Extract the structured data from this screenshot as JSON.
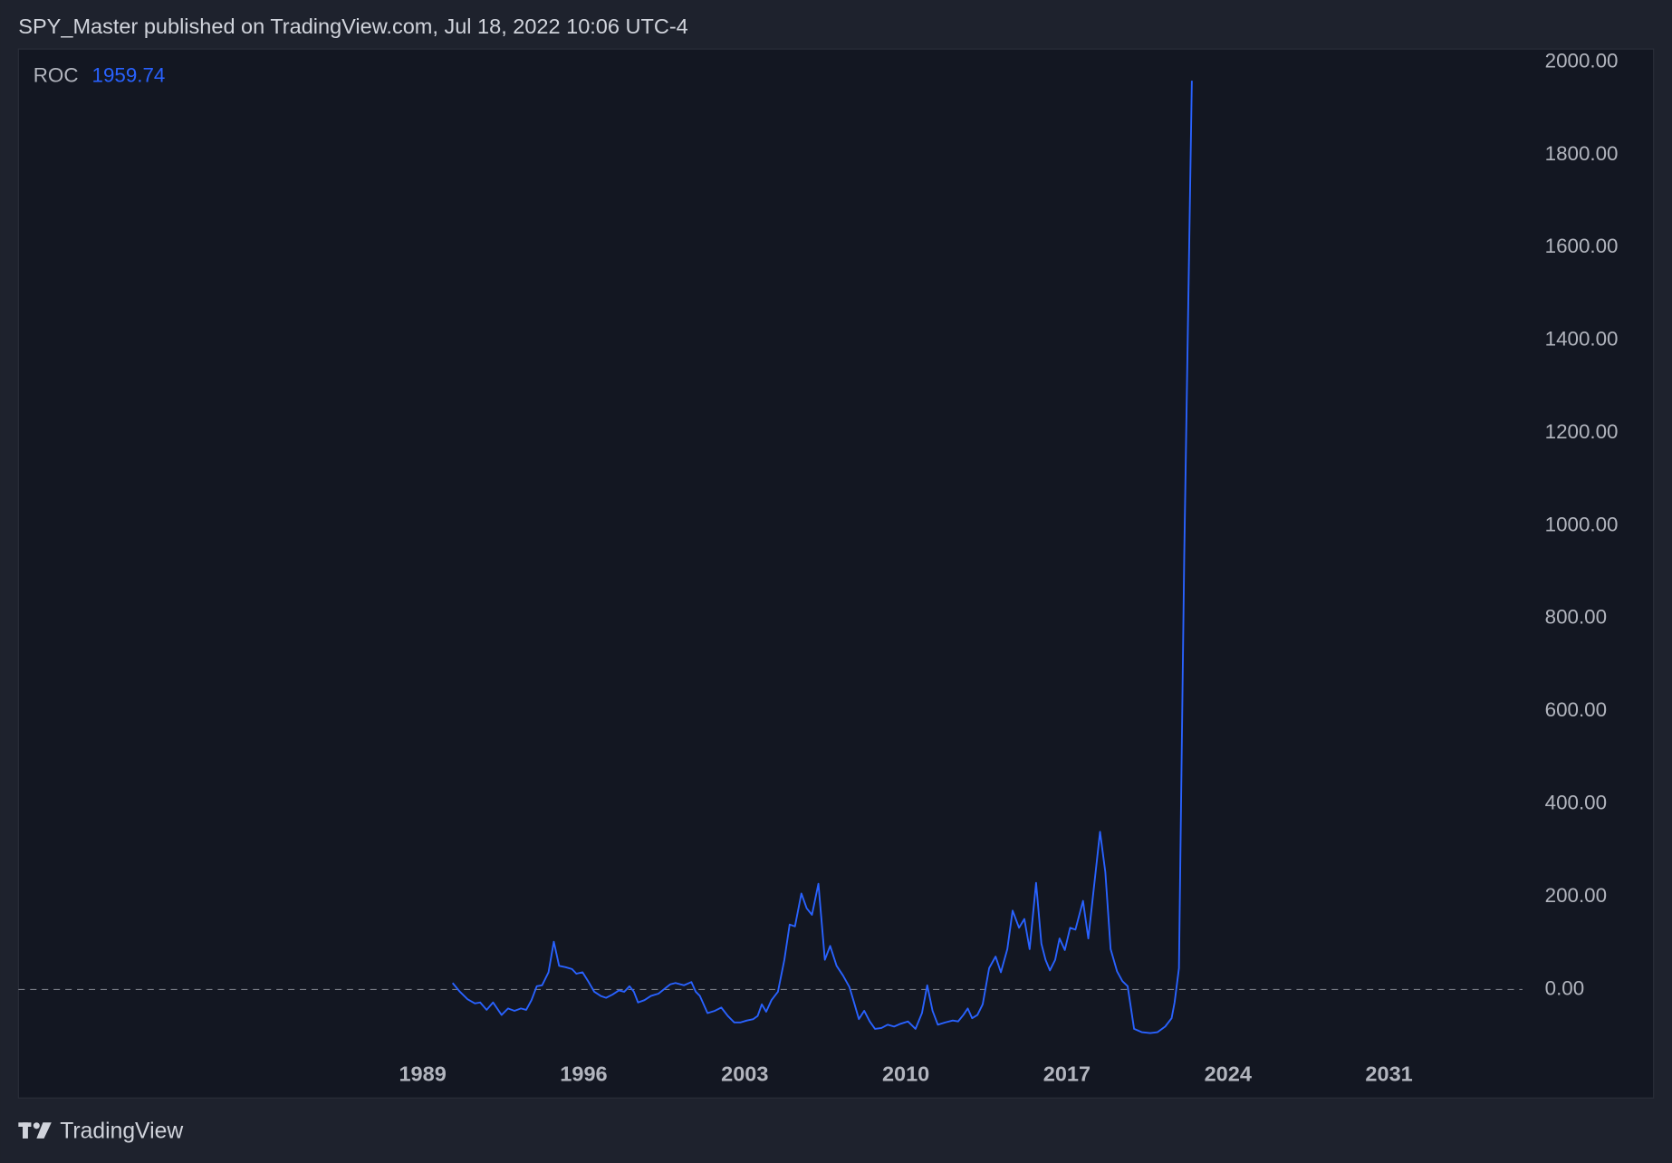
{
  "chart_data": {
    "type": "line",
    "title": "SPY_Master published on TradingView.com, Jul 18, 2022 10:06 UTC-4",
    "footer": "TradingView",
    "x": [
      1990.3,
      1990.62,
      1990.95,
      1991.27,
      1991.5,
      1991.78,
      1992.06,
      1992.43,
      1992.71,
      1992.99,
      1993.27,
      1993.5,
      1993.73,
      1993.96,
      1994.19,
      1994.47,
      1994.7,
      1994.93,
      1995.21,
      1995.49,
      1995.68,
      1995.95,
      1996.19,
      1996.46,
      1996.74,
      1996.97,
      1997.25,
      1997.53,
      1997.76,
      1997.99,
      1998.18,
      1998.36,
      1998.64,
      1998.92,
      1999.25,
      1999.48,
      1999.76,
      1999.99,
      2000.36,
      2000.68,
      2000.87,
      2001.05,
      2001.38,
      2001.7,
      2001.98,
      2002.26,
      2002.54,
      2002.82,
      2003.09,
      2003.37,
      2003.56,
      2003.74,
      2003.93,
      2004.16,
      2004.44,
      2004.72,
      2004.95,
      2005.18,
      2005.46,
      2005.69,
      2005.92,
      2006.2,
      2006.48,
      2006.71,
      2006.99,
      2007.27,
      2007.55,
      2007.73,
      2007.96,
      2008.19,
      2008.43,
      2008.66,
      2008.94,
      2009.21,
      2009.49,
      2009.77,
      2010.09,
      2010.42,
      2010.7,
      2010.93,
      2011.16,
      2011.39,
      2011.72,
      2012.04,
      2012.27,
      2012.5,
      2012.69,
      2012.88,
      2013.11,
      2013.34,
      2013.62,
      2013.9,
      2014.13,
      2014.41,
      2014.64,
      2014.92,
      2015.15,
      2015.38,
      2015.66,
      2015.89,
      2016.07,
      2016.26,
      2016.49,
      2016.68,
      2016.91,
      2017.14,
      2017.37,
      2017.7,
      2017.93,
      2018.44,
      2018.67,
      2018.9,
      2019.18,
      2019.41,
      2019.64,
      2019.92,
      2020.25,
      2020.62,
      2020.94,
      2021.27,
      2021.55,
      2021.68,
      2021.87,
      2022.1,
      2022.43
    ],
    "series": [
      {
        "name": "ROC",
        "color": "#2962ff",
        "values": [
          14,
          -5,
          -21,
          -30,
          -28,
          -44,
          -28,
          -55,
          -41,
          -46,
          -41,
          -44,
          -23,
          7,
          9,
          37,
          103,
          51,
          48,
          44,
          34,
          37,
          18,
          -5,
          -14,
          -18,
          -11,
          -2,
          -5,
          7,
          -5,
          -28,
          -23,
          -14,
          -9,
          0,
          11,
          14,
          9,
          16,
          -5,
          -14,
          -51,
          -46,
          -39,
          -57,
          -71,
          -71,
          -67,
          -64,
          -57,
          -32,
          -48,
          -23,
          -5,
          64,
          140,
          136,
          207,
          175,
          161,
          228,
          64,
          94,
          51,
          30,
          5,
          -25,
          -64,
          -46,
          -69,
          -85,
          -83,
          -76,
          -80,
          -74,
          -69,
          -85,
          -51,
          9,
          -46,
          -76,
          -71,
          -67,
          -69,
          -55,
          -41,
          -62,
          -55,
          -32,
          46,
          71,
          37,
          87,
          170,
          133,
          152,
          87,
          230,
          99,
          64,
          41,
          64,
          110,
          85,
          133,
          129,
          191,
          110,
          340,
          253,
          87,
          39,
          18,
          7,
          -85,
          -92,
          -94,
          -92,
          -80,
          -62,
          -28,
          46,
          938,
          1959.74
        ]
      }
    ],
    "xlim": [
      1971.43,
      2036.8
    ],
    "xticks": [
      1989,
      1996,
      2003,
      2010,
      2017,
      2024,
      2031
    ],
    "ylim": [
      -234,
      2028
    ],
    "yticks": [
      {
        "value": 0,
        "label": "0.00"
      },
      {
        "value": 200,
        "label": "200.00"
      },
      {
        "value": 400,
        "label": "400.00"
      },
      {
        "value": 600,
        "label": "600.00"
      },
      {
        "value": 800,
        "label": "800.00"
      },
      {
        "value": 1000,
        "label": "1000.00"
      },
      {
        "value": 1200,
        "label": "1200.00"
      },
      {
        "value": 1400,
        "label": "1400.00"
      },
      {
        "value": 1600,
        "label": "1600.00"
      },
      {
        "value": 1800,
        "label": "1800.00"
      },
      {
        "value": 2000,
        "label": "2000.00"
      }
    ],
    "hline": 0,
    "grid": false
  }
}
